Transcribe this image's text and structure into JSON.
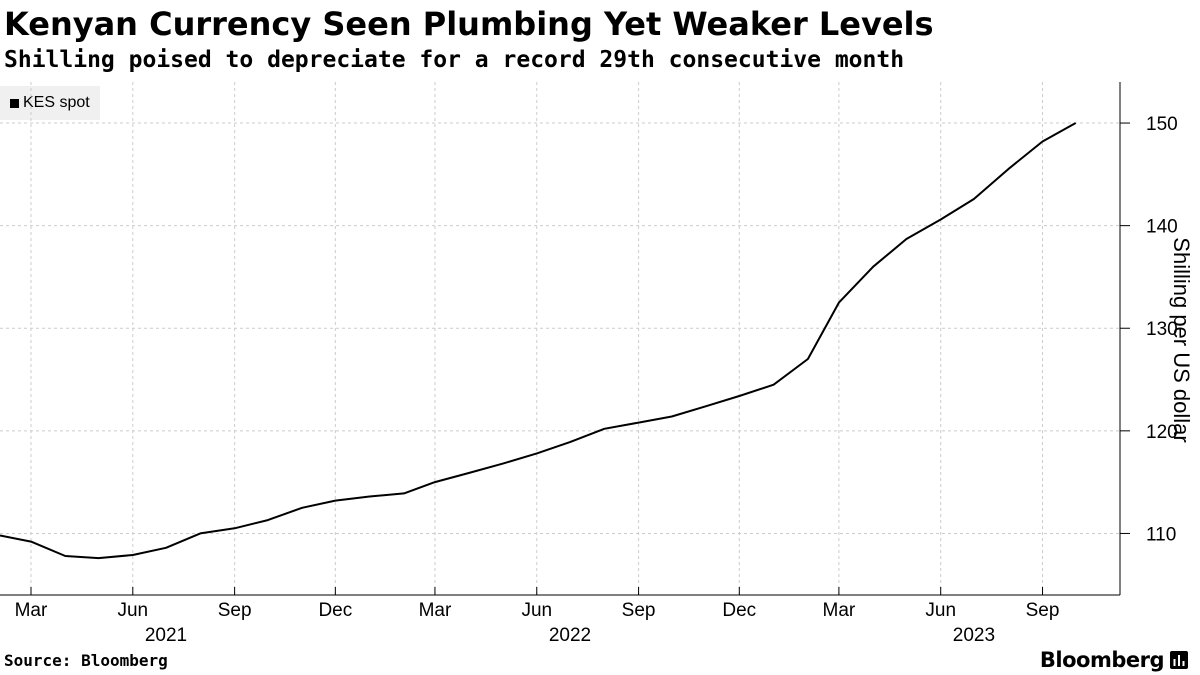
{
  "header": {
    "title": "Kenyan Currency Seen Plumbing Yet Weaker Levels",
    "subtitle": "Shilling poised to depreciate for a record 29th consecutive month"
  },
  "footer": {
    "source": "Source: Bloomberg",
    "brand": "Bloomberg"
  },
  "chart_data": {
    "type": "line",
    "title": "Kenyan Currency Seen Plumbing Yet Weaker Levels",
    "subtitle": "Shilling poised to depreciate for a record 29th consecutive month",
    "ylabel": "Shilling per US dollar",
    "xlabel": "",
    "ylim": [
      104,
      154
    ],
    "xlim": [
      "2021-02-01",
      "2023-11-10"
    ],
    "y_ticks": [
      110,
      120,
      130,
      140,
      150
    ],
    "y_axis_position": "right",
    "grid": true,
    "legend_position": "top-left",
    "x_ticks": [
      {
        "date": "2021-03-01",
        "label": "Mar"
      },
      {
        "date": "2021-06-01",
        "label": "Jun"
      },
      {
        "date": "2021-09-01",
        "label": "Sep"
      },
      {
        "date": "2021-12-01",
        "label": "Dec"
      },
      {
        "date": "2022-03-01",
        "label": "Mar"
      },
      {
        "date": "2022-06-01",
        "label": "Jun"
      },
      {
        "date": "2022-09-01",
        "label": "Sep"
      },
      {
        "date": "2022-12-01",
        "label": "Dec"
      },
      {
        "date": "2023-03-01",
        "label": "Mar"
      },
      {
        "date": "2023-06-01",
        "label": "Jun"
      },
      {
        "date": "2023-09-01",
        "label": "Sep"
      }
    ],
    "year_labels": [
      {
        "date": "2021-07-01",
        "label": "2021"
      },
      {
        "date": "2022-07-01",
        "label": "2022"
      },
      {
        "date": "2023-07-01",
        "label": "2023"
      }
    ],
    "series": [
      {
        "name": "KES spot",
        "color": "#000000",
        "x": [
          "2021-02-01",
          "2021-03-01",
          "2021-04-01",
          "2021-05-01",
          "2021-06-01",
          "2021-07-01",
          "2021-08-01",
          "2021-09-01",
          "2021-10-01",
          "2021-11-01",
          "2021-12-01",
          "2022-01-01",
          "2022-02-01",
          "2022-03-01",
          "2022-04-01",
          "2022-05-01",
          "2022-06-01",
          "2022-07-01",
          "2022-08-01",
          "2022-09-01",
          "2022-10-01",
          "2022-11-01",
          "2022-12-01",
          "2023-01-01",
          "2023-02-01",
          "2023-03-01",
          "2023-04-01",
          "2023-05-01",
          "2023-06-01",
          "2023-07-01",
          "2023-08-01",
          "2023-09-01",
          "2023-10-01"
        ],
        "values": [
          109.8,
          109.2,
          107.8,
          107.6,
          107.9,
          108.6,
          110.0,
          110.5,
          111.3,
          112.5,
          113.2,
          113.6,
          113.9,
          115.0,
          115.9,
          116.8,
          117.8,
          118.9,
          120.2,
          120.8,
          121.4,
          122.4,
          123.4,
          124.5,
          127.0,
          132.5,
          136.0,
          138.7,
          140.6,
          142.6,
          145.5,
          148.2,
          150.0
        ]
      }
    ]
  }
}
